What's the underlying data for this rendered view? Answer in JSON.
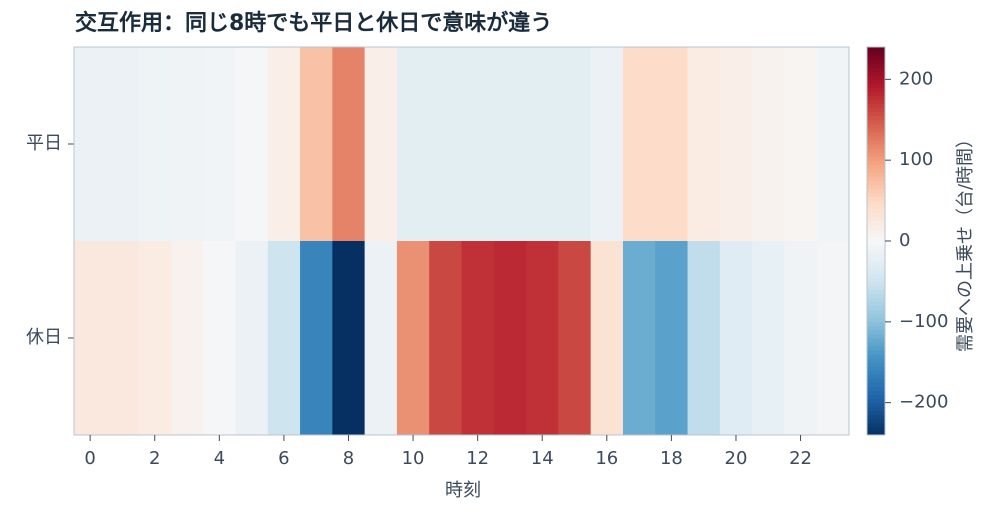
{
  "chart_data": {
    "type": "heatmap",
    "title": "交互作用：同じ8時でも平日と休日で意味が違う",
    "x_label": "時刻",
    "colorbar_label": "需要への上乗せ（台/時間）",
    "x": [
      0,
      1,
      2,
      3,
      4,
      5,
      6,
      7,
      8,
      9,
      10,
      11,
      12,
      13,
      14,
      15,
      16,
      17,
      18,
      19,
      20,
      21,
      22,
      23
    ],
    "rows": [
      "平日",
      "休日"
    ],
    "values": [
      [
        -15,
        -15,
        -12,
        -10,
        -8,
        -3,
        15,
        70,
        120,
        15,
        -25,
        -25,
        -25,
        -25,
        -25,
        -25,
        -15,
        45,
        45,
        20,
        15,
        8,
        5,
        -8
      ],
      [
        25,
        25,
        20,
        10,
        -3,
        -15,
        -50,
        -160,
        -240,
        -15,
        110,
        160,
        175,
        180,
        175,
        160,
        35,
        -120,
        -130,
        -60,
        -30,
        -20,
        -10,
        -5
      ]
    ],
    "xlim": [
      -0.5,
      23.5
    ],
    "xticks": [
      0,
      2,
      4,
      6,
      8,
      10,
      12,
      14,
      16,
      18,
      20,
      22
    ],
    "clim": [
      -240,
      240
    ],
    "cticks": [
      {
        "value": -200,
        "label": "−200"
      },
      {
        "value": -100,
        "label": "−100"
      },
      0,
      100,
      200
    ],
    "colormap": [
      "#053061",
      "#2166ac",
      "#4393c3",
      "#92c5de",
      "#d1e5f0",
      "#f7f7f7",
      "#fddbc7",
      "#f4a582",
      "#d6604d",
      "#b2182b",
      "#67001f"
    ]
  }
}
